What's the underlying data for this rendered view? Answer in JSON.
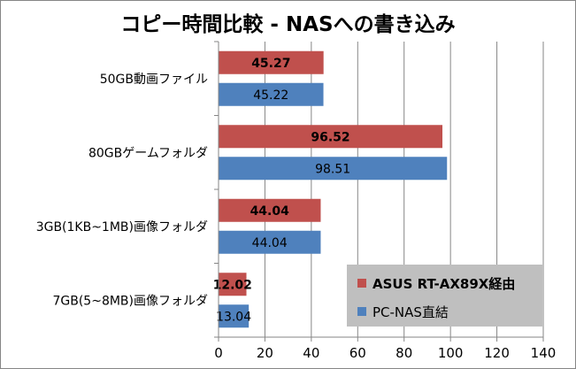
{
  "chart_data": {
    "type": "bar",
    "orientation": "horizontal",
    "title": "コピー時間比較 - NASへの書き込み",
    "categories": [
      "50GB動画ファイル",
      "80GBゲームフォルダ",
      "3GB(1KB~1MB)画像フォルダ",
      "7GB(5~8MB)画像フォルダ"
    ],
    "series": [
      {
        "name": "ASUS RT-AX89X経由",
        "color": "#c0504d",
        "values": [
          45.27,
          96.52,
          44.04,
          12.02
        ],
        "labels": [
          "45.27",
          "96.52",
          "44.04",
          "12.02"
        ]
      },
      {
        "name": "PC-NAS直結",
        "color": "#4f81bd",
        "values": [
          45.22,
          98.51,
          44.04,
          13.04
        ],
        "labels": [
          "45.22",
          "98.51",
          "44.04",
          "13.04"
        ]
      }
    ],
    "xlim": [
      0,
      140
    ],
    "xticks": [
      "0",
      "20",
      "40",
      "60",
      "80",
      "100",
      "120",
      "140"
    ],
    "grid": true,
    "legend": "bottom-right",
    "xlabel": "",
    "ylabel": ""
  }
}
